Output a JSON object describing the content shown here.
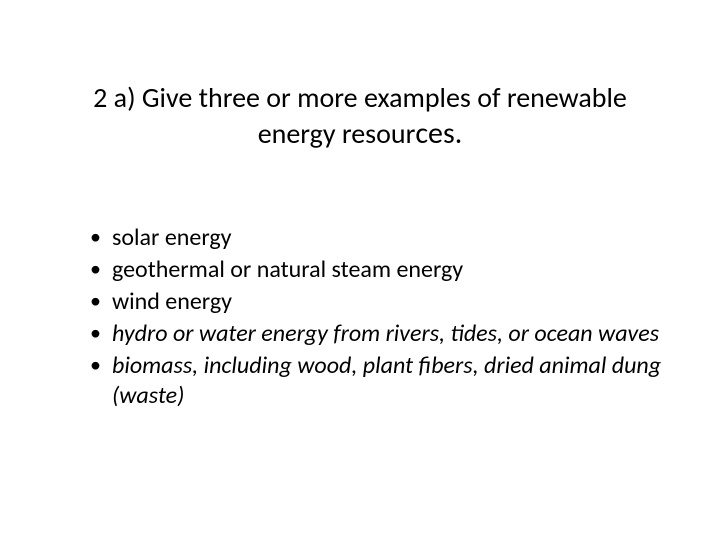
{
  "slide": {
    "title_line1": "2 a)  Give three or more examples of renewable",
    "title_line2a": "energy resour",
    "title_line2b": "ces.",
    "bullets": [
      {
        "text": "solar energy",
        "italic": false
      },
      {
        "text": "geothermal or natural steam energy",
        "italic": false
      },
      {
        "text": "wind energy",
        "italic": false
      },
      {
        "text": "hydro or water energy from rivers, tides, or ocean waves",
        "italic": true
      },
      {
        "text": "biomass, including wood, plant fibers, dried animal dung (waste)",
        "italic": true
      }
    ]
  },
  "style": {
    "background_color": "#ffffff",
    "text_color": "#000000",
    "title_fontsize": 28,
    "title_fontsize_end": 30,
    "body_fontsize": 24,
    "font_family": "Calibri"
  }
}
